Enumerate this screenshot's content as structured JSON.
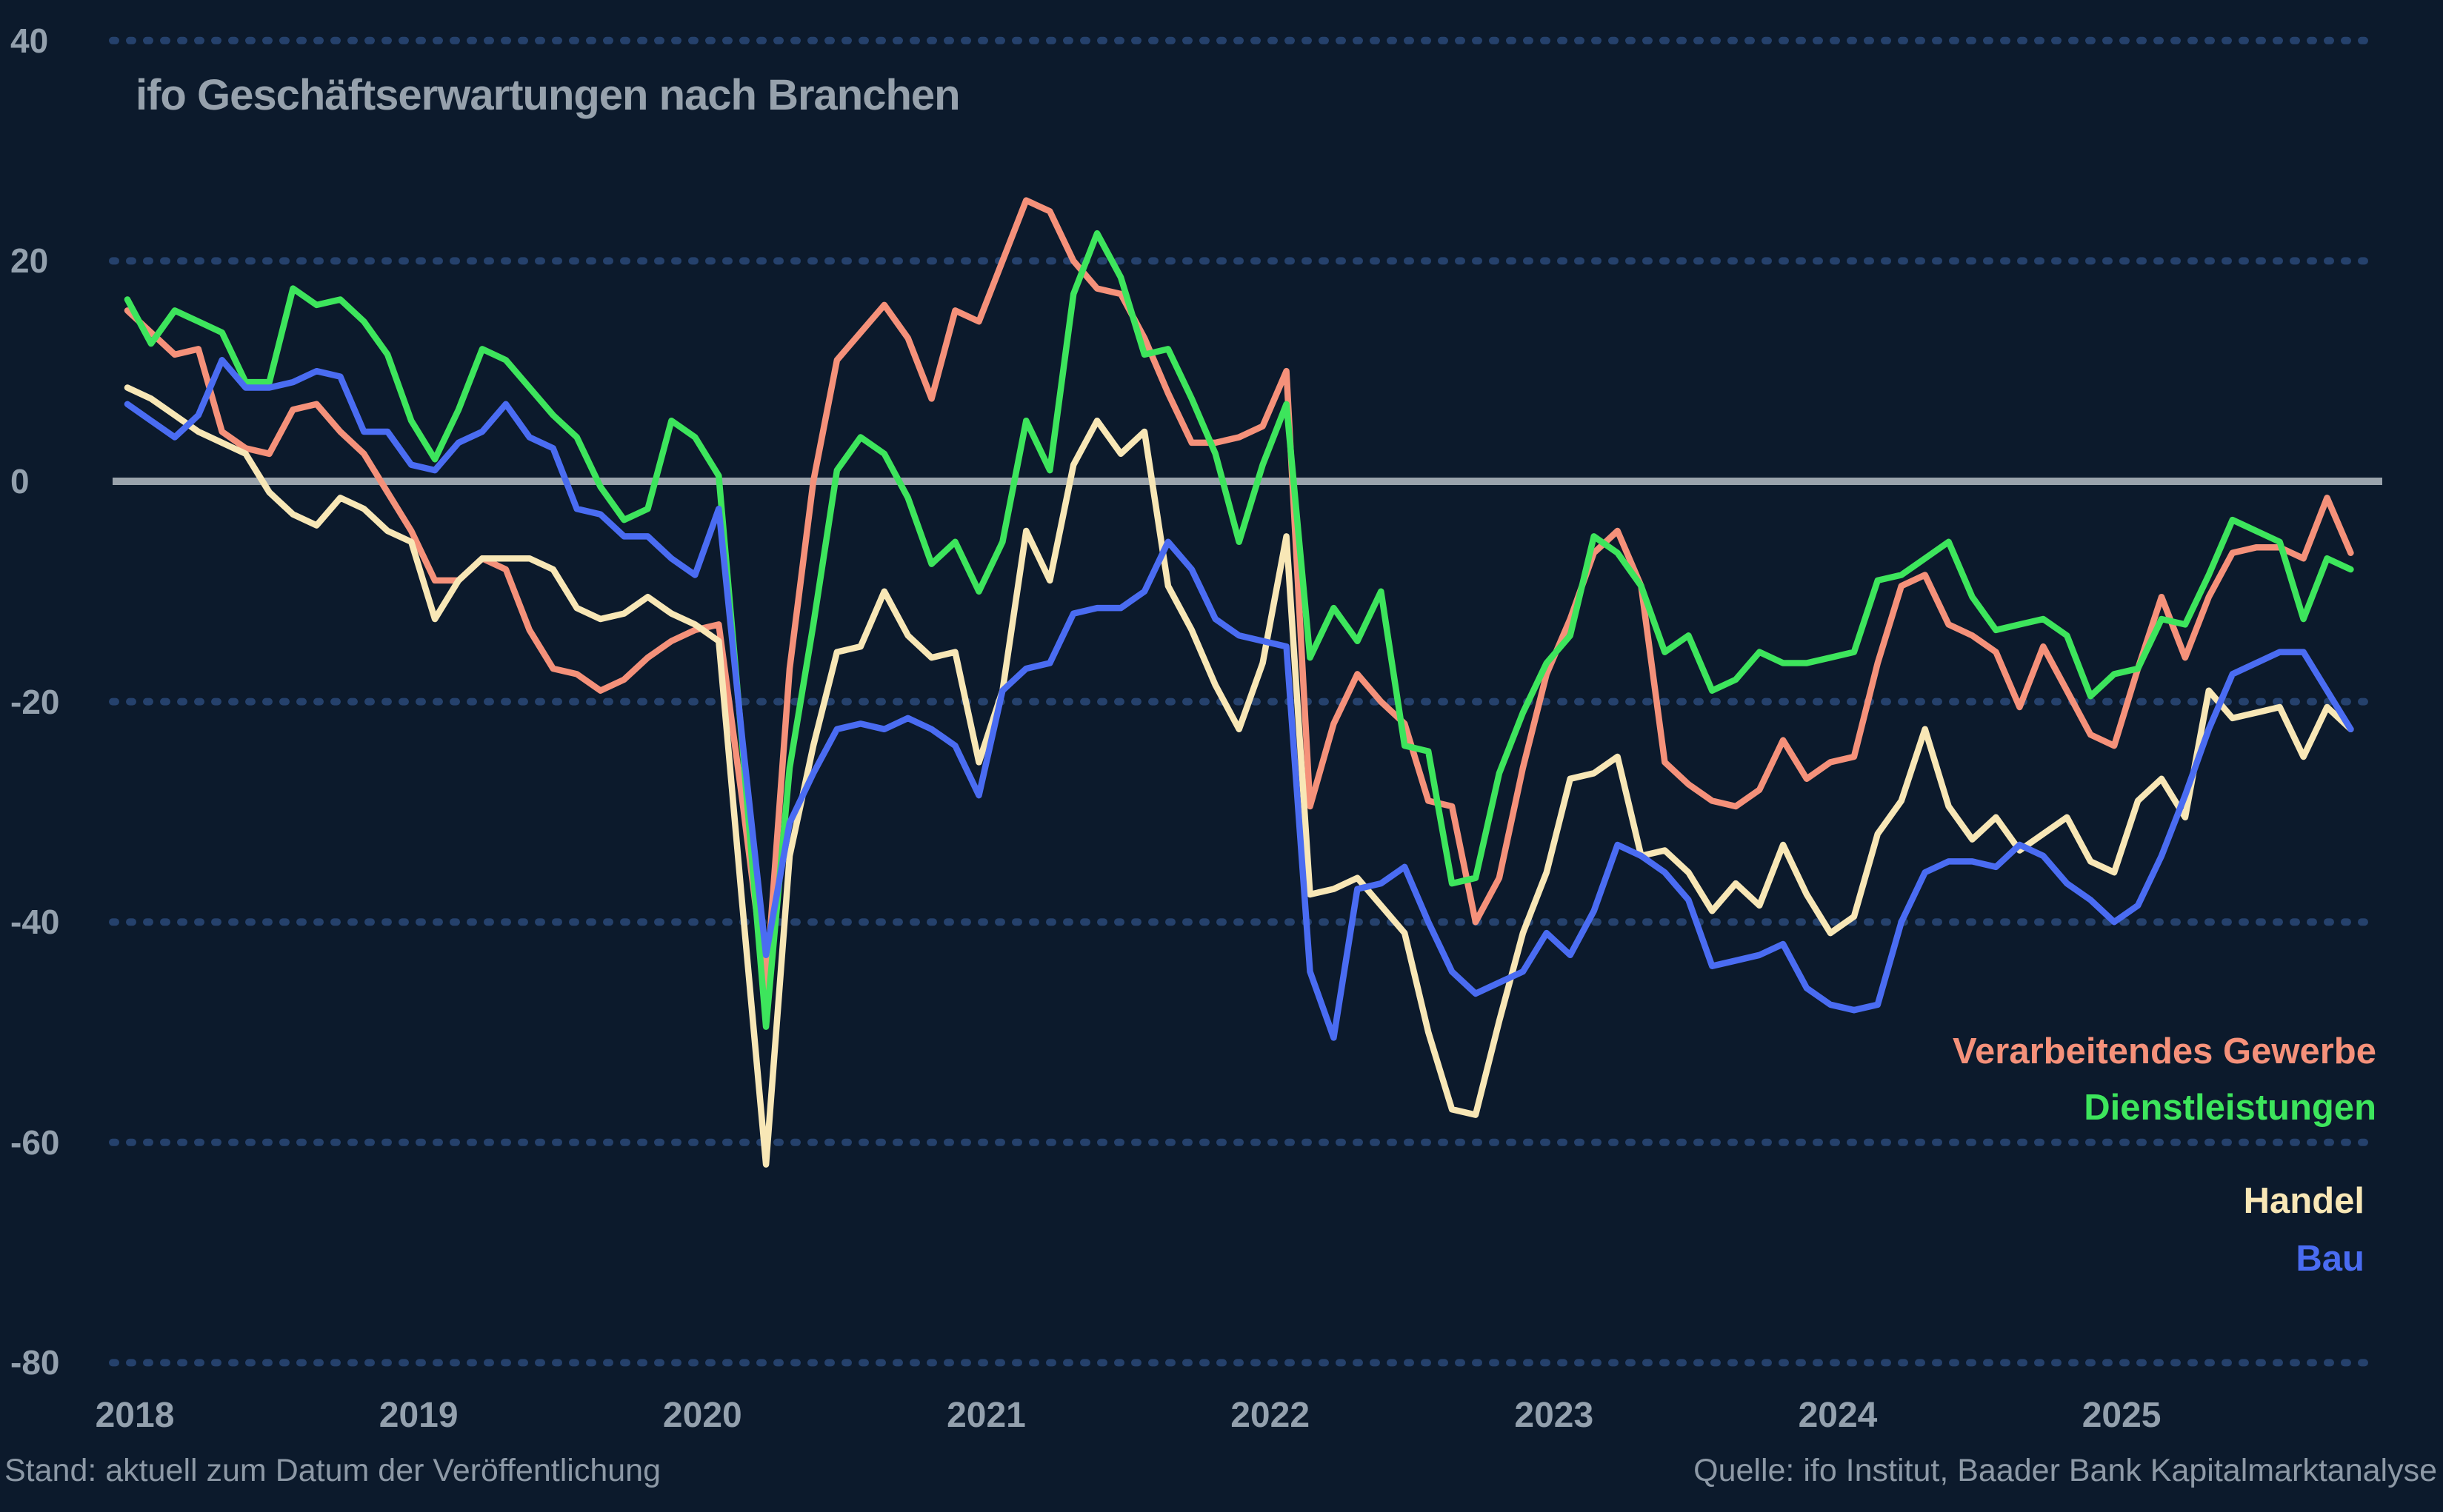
{
  "title": "ifo Geschäftserwartungen nach Branchen",
  "footer": {
    "left": "Stand: aktuell zum Datum der Veröffentlichung",
    "right": "Quelle: ifo Institut, Baader Bank Kapitalmarktanalyse"
  },
  "colors": {
    "background": "#0c1a2c",
    "grid_dots": "#25416c",
    "zero_line": "#9aa3ac",
    "axis_text": "#93a0ad",
    "title_text": "#96a1ac",
    "footer_text": "#8d99a6",
    "verarbeitendes_gewerbe": "#f5917a",
    "dienstleistungen": "#3de55c",
    "handel": "#f8e7b6",
    "bau": "#4a6cf2"
  },
  "legend": [
    {
      "id": "verarbeitendes_gewerbe",
      "label": "Verarbeitendes Gewerbe"
    },
    {
      "id": "dienstleistungen",
      "label": "Dienstleistungen"
    },
    {
      "id": "handel",
      "label": "Handel"
    },
    {
      "id": "bau",
      "label": "Bau"
    }
  ],
  "chart_data": {
    "type": "line",
    "title": "ifo Geschäftserwartungen nach Branchen",
    "xlabel": "",
    "ylabel": "",
    "ylim": [
      -80,
      40
    ],
    "yticks": [
      40,
      20,
      0,
      -20,
      -40,
      -60,
      -80
    ],
    "xticks": [
      "2018",
      "2019",
      "2020",
      "2021",
      "2022",
      "2023",
      "2024",
      "2025"
    ],
    "frequency": "monthly",
    "x_start": "2018-01",
    "x_end": "2025-11",
    "grid": "dotted-horizontal",
    "legend_position": "right-inside",
    "x": [
      "2018-01",
      "2018-02",
      "2018-03",
      "2018-04",
      "2018-05",
      "2018-06",
      "2018-07",
      "2018-08",
      "2018-09",
      "2018-10",
      "2018-11",
      "2018-12",
      "2019-01",
      "2019-02",
      "2019-03",
      "2019-04",
      "2019-05",
      "2019-06",
      "2019-07",
      "2019-08",
      "2019-09",
      "2019-10",
      "2019-11",
      "2019-12",
      "2020-01",
      "2020-02",
      "2020-03",
      "2020-04",
      "2020-05",
      "2020-06",
      "2020-07",
      "2020-08",
      "2020-09",
      "2020-10",
      "2020-11",
      "2020-12",
      "2021-01",
      "2021-02",
      "2021-03",
      "2021-04",
      "2021-05",
      "2021-06",
      "2021-07",
      "2021-08",
      "2021-09",
      "2021-10",
      "2021-11",
      "2021-12",
      "2022-01",
      "2022-02",
      "2022-03",
      "2022-04",
      "2022-05",
      "2022-06",
      "2022-07",
      "2022-08",
      "2022-09",
      "2022-10",
      "2022-11",
      "2022-12",
      "2023-01",
      "2023-02",
      "2023-03",
      "2023-04",
      "2023-05",
      "2023-06",
      "2023-07",
      "2023-08",
      "2023-09",
      "2023-10",
      "2023-11",
      "2023-12",
      "2024-01",
      "2024-02",
      "2024-03",
      "2024-04",
      "2024-05",
      "2024-06",
      "2024-07",
      "2024-08",
      "2024-09",
      "2024-10",
      "2024-11",
      "2024-12",
      "2025-01",
      "2025-02",
      "2025-03",
      "2025-04",
      "2025-05",
      "2025-06",
      "2025-07",
      "2025-08",
      "2025-09",
      "2025-10",
      "2025-11"
    ],
    "series": [
      {
        "name": "Verarbeitendes Gewerbe",
        "color_id": "verarbeitendes_gewerbe",
        "values": [
          15.5,
          13.5,
          11.5,
          12,
          4.5,
          3,
          2.5,
          6.5,
          7,
          4.5,
          2.5,
          -1,
          -4.5,
          -9,
          -9,
          -7,
          -8,
          -13.5,
          -17,
          -17.5,
          -19,
          -18,
          -16,
          -14.5,
          -13.5,
          -13,
          -29,
          -46,
          -17,
          0,
          11,
          13.5,
          16,
          13,
          7.5,
          15.5,
          14.5,
          20,
          25.5,
          24.5,
          20,
          17.5,
          17,
          13,
          8,
          3.5,
          3.5,
          4,
          5,
          10,
          -29.5,
          -22,
          -17.5,
          -20,
          -22,
          -29,
          -29.5,
          -40,
          -36,
          -26,
          -17.5,
          -12.5,
          -6.5,
          -4.5,
          -9.5,
          -25.5,
          -27.5,
          -29,
          -29.5,
          -28,
          -23.5,
          -27,
          -25.5,
          -25,
          -16.5,
          -9.5,
          -8.5,
          -13,
          -14,
          -15.5,
          -20.5,
          -15,
          -19,
          -23,
          -24,
          -17,
          -10.5,
          -16,
          -10.5,
          -6.5,
          -6,
          -6,
          -7,
          -1.5,
          -6.5
        ]
      },
      {
        "name": "Dienstleistungen",
        "color_id": "dienstleistungen",
        "values": [
          16.5,
          12.5,
          15.5,
          14.5,
          13.5,
          9,
          9,
          17.5,
          16,
          16.5,
          14.5,
          11.5,
          5.5,
          2,
          6.5,
          12,
          11,
          8.5,
          6,
          4,
          -0.5,
          -3.5,
          -2.5,
          5.5,
          4,
          0.5,
          -24,
          -49.5,
          -26,
          -13,
          1,
          4,
          2.5,
          -1.5,
          -7.5,
          -5.5,
          -10,
          -5.5,
          5.5,
          1,
          17,
          22.5,
          18.5,
          11.5,
          12,
          7.5,
          2.5,
          -5.5,
          1.5,
          7,
          -16,
          -11.5,
          -14.5,
          -10,
          -24,
          -24.5,
          -36.5,
          -36,
          -26.5,
          -21,
          -16.5,
          -14,
          -5,
          -6.5,
          -9.5,
          -15.5,
          -14,
          -19,
          -18,
          -15.5,
          -16.5,
          -16.5,
          -16,
          -15.5,
          -9,
          -8.5,
          -7,
          -5.5,
          -10.5,
          -13.5,
          -13,
          -12.5,
          -14,
          -19.5,
          -17.5,
          -17,
          -12.5,
          -13,
          -8.5,
          -3.5,
          -4.5,
          -5.5,
          -12.5,
          -7,
          -8
        ]
      },
      {
        "name": "Handel",
        "color_id": "handel",
        "values": [
          8.5,
          7.5,
          6,
          4.5,
          3.5,
          2.5,
          -1,
          -3,
          -4,
          -1.5,
          -2.5,
          -4.5,
          -5.5,
          -12.5,
          -9,
          -7,
          -7,
          -7,
          -8,
          -11.5,
          -12.5,
          -12,
          -10.5,
          -12,
          -13,
          -14.5,
          -38.5,
          -62,
          -34,
          -24,
          -15.5,
          -15,
          -10,
          -14,
          -16,
          -15.5,
          -25.5,
          -19,
          -4.5,
          -9,
          1.5,
          5.5,
          2.5,
          4.5,
          -9.5,
          -13.5,
          -18.5,
          -22.5,
          -16.5,
          -5,
          -37.5,
          -37,
          -36,
          -38.5,
          -41,
          -50,
          -57,
          -57.5,
          -49,
          -41,
          -35.5,
          -27,
          -26.5,
          -25,
          -34,
          -33.5,
          -35.5,
          -39,
          -36.5,
          -38.5,
          -33,
          -37.5,
          -41,
          -39.5,
          -32,
          -29,
          -22.5,
          -29.5,
          -32.5,
          -30.5,
          -33.5,
          -32,
          -30.5,
          -34.5,
          -35.5,
          -29,
          -27,
          -30.5,
          -19,
          -21.5,
          -21,
          -20.5,
          -25,
          -20.5,
          -22.5
        ]
      },
      {
        "name": "Bau",
        "color_id": "bau",
        "values": [
          7,
          5.5,
          4,
          6,
          11,
          8.5,
          8.5,
          9,
          10,
          9.5,
          4.5,
          4.5,
          1.5,
          1,
          3.5,
          4.5,
          7,
          4,
          3,
          -2.5,
          -3,
          -5,
          -5,
          -7,
          -8.5,
          -2.5,
          -23.5,
          -43,
          -31,
          -26.5,
          -22.5,
          -22,
          -22.5,
          -21.5,
          -22.5,
          -24,
          -28.5,
          -19,
          -17,
          -16.5,
          -12,
          -11.5,
          -11.5,
          -10,
          -5.5,
          -8,
          -12.5,
          -14,
          -14.5,
          -15,
          -44.5,
          -50.5,
          -37,
          -36.5,
          -35,
          -40,
          -44.5,
          -46.5,
          -45.5,
          -44.5,
          -41,
          -43,
          -39,
          -33,
          -34,
          -35.5,
          -38,
          -44,
          -43.5,
          -43,
          -42,
          -46,
          -47.5,
          -48,
          -47.5,
          -40,
          -35.5,
          -34.5,
          -34.5,
          -35,
          -33,
          -34,
          -36.5,
          -38,
          -40,
          -38.5,
          -34,
          -28.5,
          -22.5,
          -17.5,
          -16.5,
          -15.5,
          -15.5,
          -19,
          -22.5
        ]
      }
    ]
  }
}
